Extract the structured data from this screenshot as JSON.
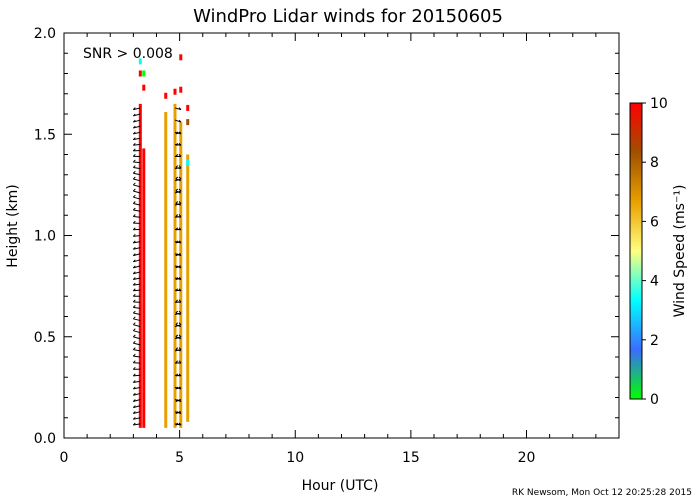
{
  "chart_data": {
    "type": "heatmap",
    "title": "WindPro Lidar winds for 20150605",
    "xlabel": "Hour (UTC)",
    "ylabel": "Height (km)",
    "xlim": [
      0,
      24
    ],
    "ylim": [
      0,
      2.0
    ],
    "xticks": [
      0,
      5,
      10,
      15,
      20
    ],
    "yticks": [
      0.0,
      0.5,
      1.0,
      1.5,
      2.0
    ],
    "xtick_labels": [
      "0",
      "5",
      "10",
      "15",
      "20"
    ],
    "ytick_labels": [
      "0.0",
      "0.5",
      "1.0",
      "1.5",
      "2.0"
    ],
    "annotation": "SNR > 0.008",
    "colorbar": {
      "label": "Wind Speed (ms⁻¹)",
      "min": 0,
      "max": 10,
      "ticks": [
        0,
        2,
        4,
        6,
        8,
        10
      ],
      "tick_labels": [
        "0",
        "2",
        "4",
        "6",
        "8",
        "10"
      ],
      "colors": [
        "#00ff00",
        "#3a6cff",
        "#00ffff",
        "#ffff80",
        "#e8a000",
        "#a05000",
        "#ff0000"
      ]
    },
    "profiles": [
      {
        "hour": 3.3,
        "h_min": 0.05,
        "h_max": 1.65,
        "speed": 10,
        "top_extras": [
          {
            "h": 1.8,
            "speed": 10
          },
          {
            "h": 1.86,
            "speed": 4
          }
        ]
      },
      {
        "hour": 3.45,
        "h_min": 0.05,
        "h_max": 1.43,
        "speed": 10,
        "top_extras": [
          {
            "h": 1.8,
            "speed": 0
          },
          {
            "h": 1.73,
            "speed": 10
          }
        ]
      },
      {
        "hour": 4.4,
        "h_min": 0.05,
        "h_max": 1.61,
        "speed": 6,
        "top_extras": [
          {
            "h": 1.69,
            "speed": 10
          }
        ]
      },
      {
        "hour": 4.8,
        "h_min": 0.05,
        "h_max": 1.65,
        "speed": 6,
        "top_extras": [
          {
            "h": 1.71,
            "speed": 10
          }
        ]
      },
      {
        "hour": 5.05,
        "h_min": 0.05,
        "h_max": 1.56,
        "speed": 6,
        "top_extras": [
          {
            "h": 1.72,
            "speed": 10
          },
          {
            "h": 1.88,
            "speed": 10
          }
        ]
      },
      {
        "hour": 5.35,
        "h_min": 0.08,
        "h_max": 1.4,
        "speed": 6,
        "top_extras": [
          {
            "h": 1.63,
            "speed": 10
          },
          {
            "h": 1.56,
            "speed": 8
          },
          {
            "h": 1.36,
            "speed": 4
          }
        ]
      }
    ]
  },
  "footer": {
    "credit": "RK Newsom, Mon Oct 12 20:25:28 2015"
  }
}
